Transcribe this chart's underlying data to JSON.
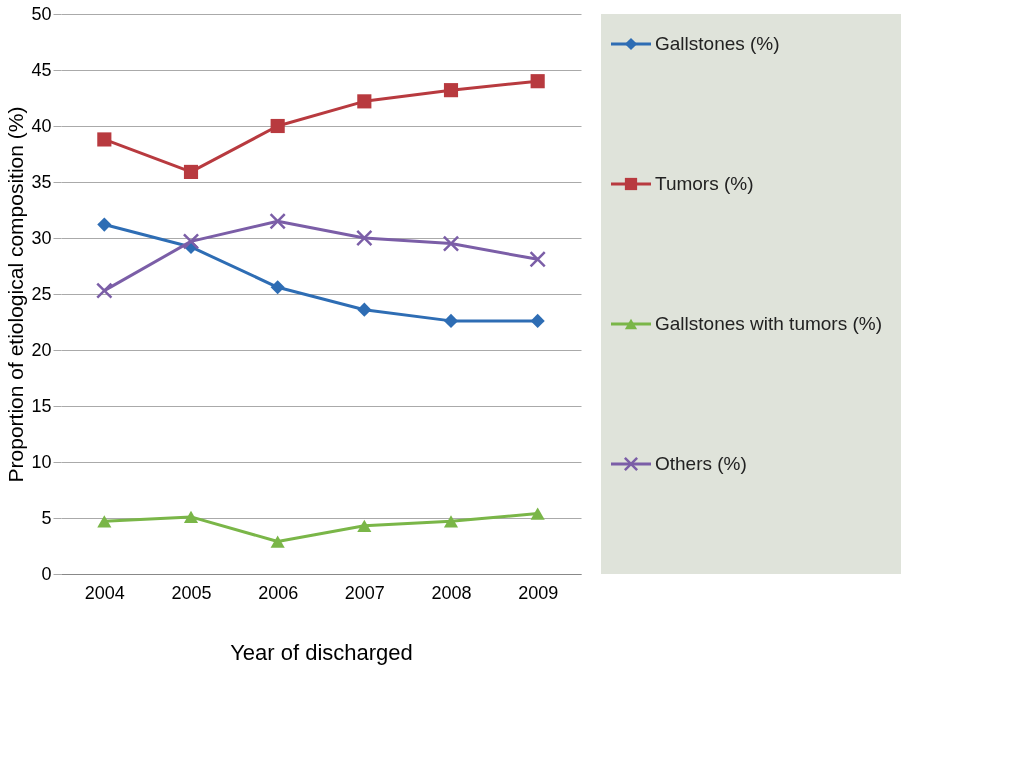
{
  "chart_data": {
    "type": "line",
    "xlabel": "Year of discharged",
    "ylabel": "Proportion of etiological composition (%)",
    "categories": [
      "2004",
      "2005",
      "2006",
      "2007",
      "2008",
      "2009"
    ],
    "ylim": [
      0,
      50
    ],
    "yticks": [
      0,
      5,
      10,
      15,
      20,
      25,
      30,
      35,
      40,
      45,
      50
    ],
    "grid": "y",
    "legend": "right",
    "line_style": "solid",
    "series": [
      {
        "name": "Gallstones (%)",
        "color": "#2e6db4",
        "marker": "diamond",
        "values": [
          31.2,
          29.2,
          25.6,
          23.6,
          22.6,
          22.6
        ]
      },
      {
        "name": "Tumors (%)",
        "color": "#b83a3f",
        "marker": "square",
        "values": [
          38.8,
          35.9,
          40.0,
          42.2,
          43.2,
          44.0
        ]
      },
      {
        "name": "Gallstones with tumors (%)",
        "color": "#7ab648",
        "marker": "triangle",
        "values": [
          4.7,
          5.1,
          2.9,
          4.3,
          4.7,
          5.4
        ]
      },
      {
        "name": "Others (%)",
        "color": "#7b5ea7",
        "marker": "cross",
        "values": [
          25.3,
          29.7,
          31.5,
          30.0,
          29.5,
          28.1
        ]
      }
    ]
  }
}
